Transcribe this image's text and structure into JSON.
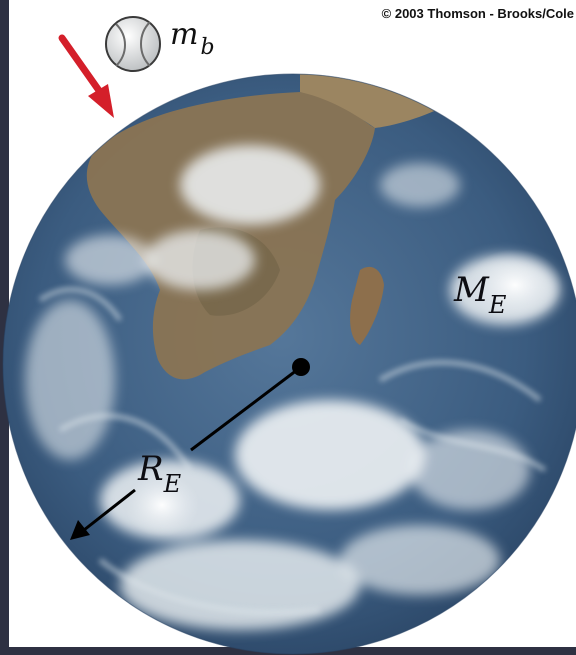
{
  "copyright": "© 2003 Thomson - Brooks/Cole",
  "labels": {
    "ball_mass": "m",
    "ball_mass_sub": "b",
    "earth_mass": "M",
    "earth_mass_sub": "E",
    "earth_radius": "R",
    "earth_radius_sub": "E"
  },
  "colors": {
    "arrow": "#d41f2a",
    "ocean": "#3d5f82",
    "land": "#8a7453",
    "cloud": "#f2f5f6",
    "frame": "#2e3142"
  },
  "icons": {
    "falling_arrow": "red-arrow-icon",
    "ball": "baseball-icon",
    "center": "center-dot-icon"
  }
}
